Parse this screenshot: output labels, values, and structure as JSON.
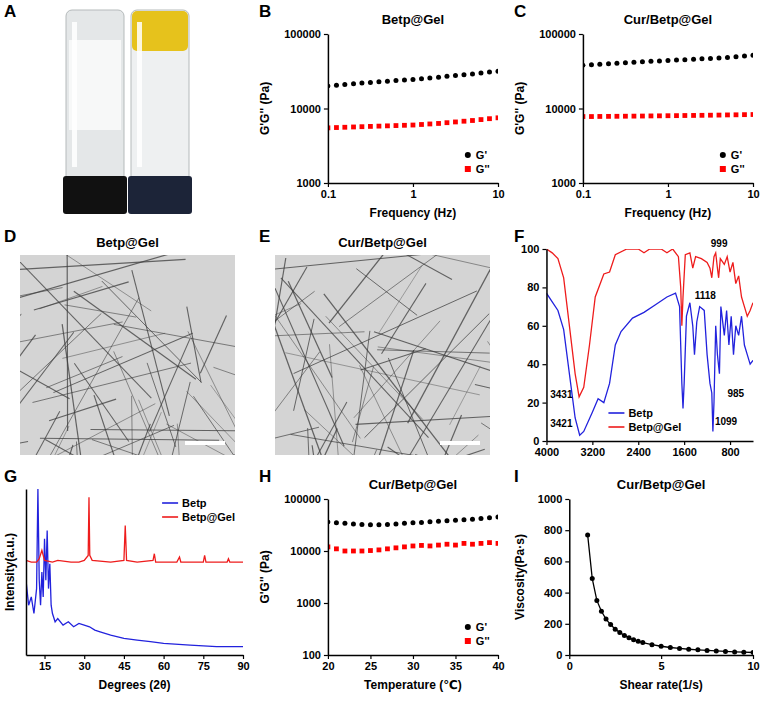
{
  "chart_data": [
    {
      "panel": "B",
      "type": "scatter",
      "title": "Betp@Gel",
      "xlabel": "Frequency (Hz)",
      "ylabel": "G'G'' (Pa)",
      "log": true,
      "xlim": [
        0.1,
        10
      ],
      "xticks": [
        0.1,
        1,
        10
      ],
      "ylim": [
        1000,
        100000
      ],
      "yticks": [
        1000,
        10000,
        100000
      ],
      "legend": "lower right",
      "x": [
        0.1,
        0.126,
        0.158,
        0.2,
        0.251,
        0.316,
        0.398,
        0.501,
        0.631,
        0.794,
        1,
        1.26,
        1.58,
        2,
        2.51,
        3.16,
        3.98,
        5.01,
        6.31,
        7.94,
        10
      ],
      "series": [
        {
          "name": "G'",
          "color": "#000000",
          "marker": "circle",
          "values": [
            20000,
            20500,
            21000,
            21500,
            22000,
            22400,
            22800,
            23200,
            23700,
            24100,
            24600,
            25100,
            25700,
            26300,
            27000,
            27700,
            28400,
            29100,
            29900,
            30800,
            31700
          ]
        },
        {
          "name": "G''",
          "color": "#ff0000",
          "marker": "square",
          "values": [
            5500,
            5550,
            5600,
            5650,
            5700,
            5750,
            5800,
            5850,
            5900,
            5950,
            6000,
            6100,
            6200,
            6300,
            6450,
            6600,
            6750,
            6900,
            7100,
            7300,
            7500
          ]
        }
      ]
    },
    {
      "panel": "C",
      "type": "scatter",
      "title": "Cur/Betp@Gel",
      "xlabel": "Frequency (Hz)",
      "ylabel": "G'G'' (Pa)",
      "log": true,
      "xlim": [
        0.1,
        10
      ],
      "xticks": [
        0.1,
        1,
        10
      ],
      "ylim": [
        1000,
        100000
      ],
      "yticks": [
        1000,
        10000,
        100000
      ],
      "legend": "lower right",
      "x": [
        0.1,
        0.126,
        0.158,
        0.2,
        0.251,
        0.316,
        0.398,
        0.501,
        0.631,
        0.794,
        1,
        1.26,
        1.58,
        2,
        2.51,
        3.16,
        3.98,
        5.01,
        6.31,
        7.94,
        10
      ],
      "series": [
        {
          "name": "G'",
          "color": "#000000",
          "marker": "circle",
          "values": [
            38000,
            38700,
            39400,
            40000,
            40600,
            41200,
            41800,
            42400,
            43000,
            43500,
            44100,
            44600,
            45200,
            45800,
            46400,
            47000,
            47700,
            48500,
            49400,
            50500,
            51800
          ]
        },
        {
          "name": "G''",
          "color": "#ff0000",
          "marker": "square",
          "values": [
            7800,
            7800,
            7820,
            7840,
            7860,
            7880,
            7900,
            7920,
            7950,
            7970,
            8000,
            8020,
            8050,
            8070,
            8100,
            8130,
            8160,
            8200,
            8230,
            8270,
            8300
          ]
        }
      ]
    },
    {
      "panel": "F",
      "type": "line",
      "xlim": [
        4000,
        400
      ],
      "xticks": [
        4000,
        3200,
        2400,
        1600,
        800
      ],
      "ylim": [
        0,
        100
      ],
      "yticks": [
        0,
        20,
        40,
        60,
        80,
        100
      ],
      "legend": "lower center",
      "series": [
        {
          "name": "Betp",
          "color": "#2222dd",
          "line_style": "solid",
          "x": [
            4000,
            3800,
            3700,
            3600,
            3500,
            3421,
            3350,
            3200,
            3100,
            3000,
            2900,
            2800,
            2700,
            2500,
            2300,
            2100,
            1900,
            1750,
            1680,
            1640,
            1620,
            1600,
            1560,
            1500,
            1450,
            1420,
            1380,
            1330,
            1250,
            1200,
            1150,
            1118,
            1099,
            1080,
            1050,
            1020,
            985,
            960,
            900,
            860,
            820,
            780,
            740,
            700,
            650,
            600,
            550,
            500,
            450,
            400
          ],
          "values": [
            77,
            68,
            58,
            35,
            12,
            3,
            5,
            15,
            22,
            20,
            30,
            50,
            57,
            64,
            67,
            71,
            75,
            77,
            70,
            30,
            17,
            30,
            65,
            72,
            60,
            45,
            62,
            70,
            68,
            45,
            30,
            25,
            5,
            20,
            60,
            45,
            35,
            70,
            55,
            68,
            50,
            65,
            45,
            60,
            55,
            65,
            50,
            45,
            40,
            42
          ]
        },
        {
          "name": "Betp@Gel",
          "color": "#ee1c1c",
          "line_style": "solid",
          "x": [
            4000,
            3900,
            3800,
            3700,
            3600,
            3500,
            3431,
            3350,
            3250,
            3150,
            3000,
            2900,
            2800,
            2600,
            2400,
            2300,
            2200,
            2000,
            1900,
            1800,
            1700,
            1660,
            1640,
            1620,
            1580,
            1500,
            1450,
            1400,
            1300,
            1200,
            1150,
            1118,
            1080,
            1050,
            1020,
            999,
            970,
            900,
            850,
            800,
            750,
            700,
            650,
            600,
            550,
            500,
            450,
            400
          ],
          "values": [
            100,
            98,
            95,
            85,
            60,
            35,
            23,
            28,
            50,
            75,
            87,
            88,
            97,
            100,
            100,
            98,
            100,
            100,
            98,
            100,
            96,
            80,
            60,
            75,
            97,
            98,
            90,
            96,
            95,
            93,
            90,
            85,
            96,
            98,
            90,
            85,
            95,
            92,
            96,
            88,
            93,
            82,
            86,
            75,
            70,
            65,
            68,
            72
          ]
        }
      ],
      "annotations": [
        {
          "text": "3431",
          "x": 3740,
          "y": 24
        },
        {
          "text": "3421",
          "x": 3740,
          "y": 9
        },
        {
          "text": "1118",
          "x": 1230,
          "y": 76
        },
        {
          "text": "999",
          "x": 990,
          "y": 103
        },
        {
          "text": "1099",
          "x": 870,
          "y": 10
        },
        {
          "text": "985",
          "x": 700,
          "y": 25
        }
      ]
    },
    {
      "panel": "G",
      "type": "line",
      "xlabel": "Degrees (2θ)",
      "ylabel": "Intensity(a.u.)",
      "tick_labels": "x",
      "xlim": [
        8,
        90
      ],
      "xticks": [
        15,
        30,
        45,
        60,
        75,
        90
      ],
      "ylim": [
        0,
        100
      ],
      "legend": "upper right",
      "series": [
        {
          "name": "Betp",
          "color": "#2222dd",
          "line_style": "solid",
          "x": [
            8,
            9,
            10,
            11,
            12,
            12.5,
            13,
            13.5,
            14,
            14.5,
            15,
            15.5,
            16,
            16.5,
            17,
            17.5,
            18,
            19,
            20,
            22,
            24,
            26,
            28,
            30,
            32,
            34,
            36,
            40,
            45,
            50,
            55,
            60,
            70,
            80,
            90
          ],
          "values": [
            45,
            30,
            35,
            25,
            40,
            100,
            45,
            30,
            50,
            35,
            70,
            45,
            75,
            40,
            55,
            30,
            25,
            20,
            22,
            18,
            20,
            17,
            19,
            18,
            17,
            15,
            14,
            12,
            10,
            9,
            8,
            7,
            6,
            5,
            5
          ]
        },
        {
          "name": "Betp@Gel",
          "color": "#ee1c1c",
          "line_style": "solid",
          "x": [
            8,
            10,
            12,
            13,
            14,
            14.5,
            15,
            18,
            20,
            25,
            28,
            30,
            31.5,
            31.8,
            32.1,
            33,
            40,
            45,
            45.5,
            46,
            50,
            56,
            56.5,
            57,
            65,
            66,
            66.5,
            75,
            75.5,
            76,
            84,
            84.5,
            85,
            90
          ],
          "values": [
            57,
            56,
            56,
            58,
            63,
            60,
            57,
            56,
            57,
            56,
            56,
            57,
            60,
            95,
            60,
            57,
            56,
            57,
            78,
            57,
            56,
            57,
            61,
            56,
            56,
            59,
            56,
            56,
            60,
            56,
            56,
            58,
            56,
            56
          ]
        }
      ]
    },
    {
      "panel": "H",
      "type": "scatter",
      "title": "Cur/Betp@Gel",
      "xlabel": "Temperature (℃)",
      "ylabel": "G'G'' (Pa)",
      "log": "y",
      "xlim": [
        20,
        40
      ],
      "xticks": [
        20,
        25,
        30,
        35,
        40
      ],
      "ylim": [
        100,
        100000
      ],
      "yticks": [
        100,
        1000,
        10000,
        100000
      ],
      "legend": "lower right",
      "x": [
        20,
        21,
        22,
        23,
        24,
        25,
        26,
        27,
        28,
        29,
        30,
        31,
        32,
        33,
        34,
        35,
        36,
        37,
        38,
        39,
        40
      ],
      "series": [
        {
          "name": "G'",
          "color": "#000000",
          "marker": "circle",
          "values": [
            36000,
            35000,
            34000,
            33000,
            32500,
            32000,
            32000,
            32500,
            33000,
            34000,
            35000,
            35500,
            36500,
            37500,
            38000,
            39000,
            40000,
            41000,
            42000,
            43500,
            45000
          ]
        },
        {
          "name": "G''",
          "color": "#ff0000",
          "marker": "square",
          "values": [
            12000,
            11000,
            10000,
            10000,
            10000,
            10200,
            10500,
            11000,
            11500,
            12000,
            12500,
            12800,
            12500,
            13000,
            13500,
            13000,
            14000,
            13500,
            14000,
            14500,
            14000
          ]
        }
      ]
    },
    {
      "panel": "I",
      "type": "line",
      "title": "Cur/Betp@Gel",
      "xlabel": "Shear rate(1/s)",
      "ylabel": "Viscosity(Pa·s)",
      "xlim": [
        0,
        10
      ],
      "xticks": [
        0,
        5,
        10
      ],
      "ylim": [
        0,
        1000
      ],
      "yticks": [
        0,
        200,
        400,
        600,
        800,
        1000
      ],
      "color": "#000000",
      "marker": "circle",
      "line_style": "solid",
      "x": [
        1,
        1.25,
        1.5,
        1.75,
        2,
        2.25,
        2.5,
        2.75,
        3,
        3.25,
        3.5,
        3.75,
        4,
        4.5,
        5,
        5.5,
        6,
        6.5,
        7,
        7.5,
        8,
        8.5,
        9,
        9.5,
        10
      ],
      "values": [
        770,
        490,
        350,
        280,
        230,
        195,
        165,
        145,
        125,
        110,
        98,
        88,
        80,
        66,
        56,
        48,
        42,
        37,
        33,
        29,
        26,
        23,
        20,
        18,
        16
      ]
    }
  ],
  "figures": [
    {
      "panel": "A"
    },
    {
      "panel": "D",
      "title": "Betp@Gel"
    },
    {
      "panel": "E",
      "title": "Cur/Betp@Gel"
    }
  ]
}
